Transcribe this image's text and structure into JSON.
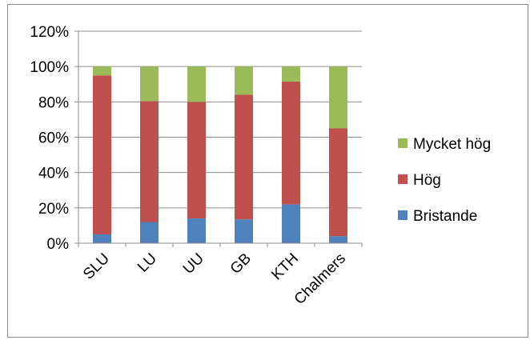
{
  "chart_data": {
    "type": "bar",
    "stacked": true,
    "percent": true,
    "categories": [
      "SLU",
      "LU",
      "UU",
      "GB",
      "KTH",
      "Chalmers"
    ],
    "series": [
      {
        "name": "Bristande",
        "values": [
          5,
          12,
          14,
          13.5,
          22,
          4
        ],
        "color": "#4f81bd"
      },
      {
        "name": "Hög",
        "values": [
          90,
          68.5,
          66,
          70.5,
          69.5,
          61
        ],
        "color": "#c0504d"
      },
      {
        "name": "Mycket hög",
        "values": [
          5,
          19.5,
          20,
          16,
          8.5,
          35
        ],
        "color": "#9bbb59"
      }
    ],
    "ylim": [
      0,
      120
    ],
    "yticks": [
      0,
      20,
      40,
      60,
      80,
      100,
      120
    ],
    "ytick_labels": [
      "0%",
      "20%",
      "40%",
      "60%",
      "80%",
      "100%",
      "120%"
    ],
    "xtick_rotation": "-45deg",
    "grid": true,
    "legend": {
      "position": "right",
      "order": [
        "Mycket hög",
        "Hög",
        "Bristande"
      ]
    },
    "title": "",
    "xlabel": "",
    "ylabel": ""
  }
}
